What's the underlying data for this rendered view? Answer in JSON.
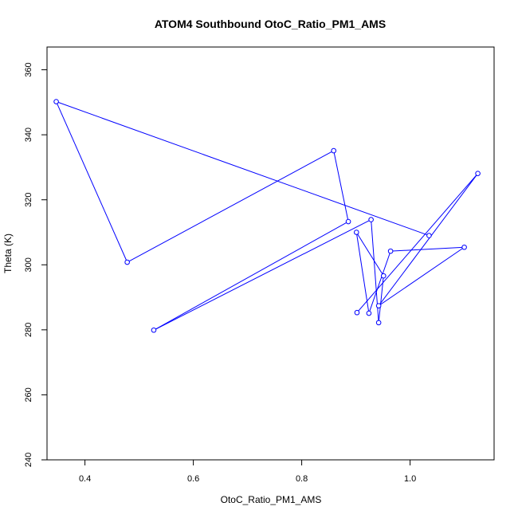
{
  "chart_data": {
    "type": "line",
    "title": "ATOM4 Southbound OtoC_Ratio_PM1_AMS",
    "xlabel": "OtoC_Ratio_PM1_AMS",
    "ylabel": "Theta (K)",
    "xlim": [
      0.33,
      1.155
    ],
    "ylim": [
      240,
      367
    ],
    "x_ticks": [
      0.4,
      0.6,
      0.8,
      1.0
    ],
    "x_tick_labels": [
      "0.4",
      "0.6",
      "0.8",
      "1.0"
    ],
    "y_ticks": [
      240,
      260,
      280,
      300,
      320,
      340,
      360
    ],
    "y_tick_labels": [
      "240",
      "260",
      "280",
      "300",
      "320",
      "340",
      "360"
    ],
    "grid": false,
    "markers": "open-circle",
    "series": [
      {
        "color": "#0000ff",
        "points": [
          {
            "x": 1.035,
            "y": 309
          },
          {
            "x": 0.347,
            "y": 350.2
          },
          {
            "x": 0.478,
            "y": 300.8
          },
          {
            "x": 0.859,
            "y": 335.1
          },
          {
            "x": 0.886,
            "y": 313.3
          },
          {
            "x": 0.527,
            "y": 279.9
          },
          {
            "x": 0.928,
            "y": 313.9
          },
          {
            "x": 0.942,
            "y": 282.2
          },
          {
            "x": 0.951,
            "y": 296.6
          },
          {
            "x": 0.901,
            "y": 310
          },
          {
            "x": 0.924,
            "y": 285.1
          },
          {
            "x": 0.964,
            "y": 304.2
          },
          {
            "x": 1.1,
            "y": 305.4
          },
          {
            "x": 0.942,
            "y": 287.4
          },
          {
            "x": 1.125,
            "y": 328.1
          },
          {
            "x": 0.902,
            "y": 285.3
          }
        ]
      }
    ]
  }
}
